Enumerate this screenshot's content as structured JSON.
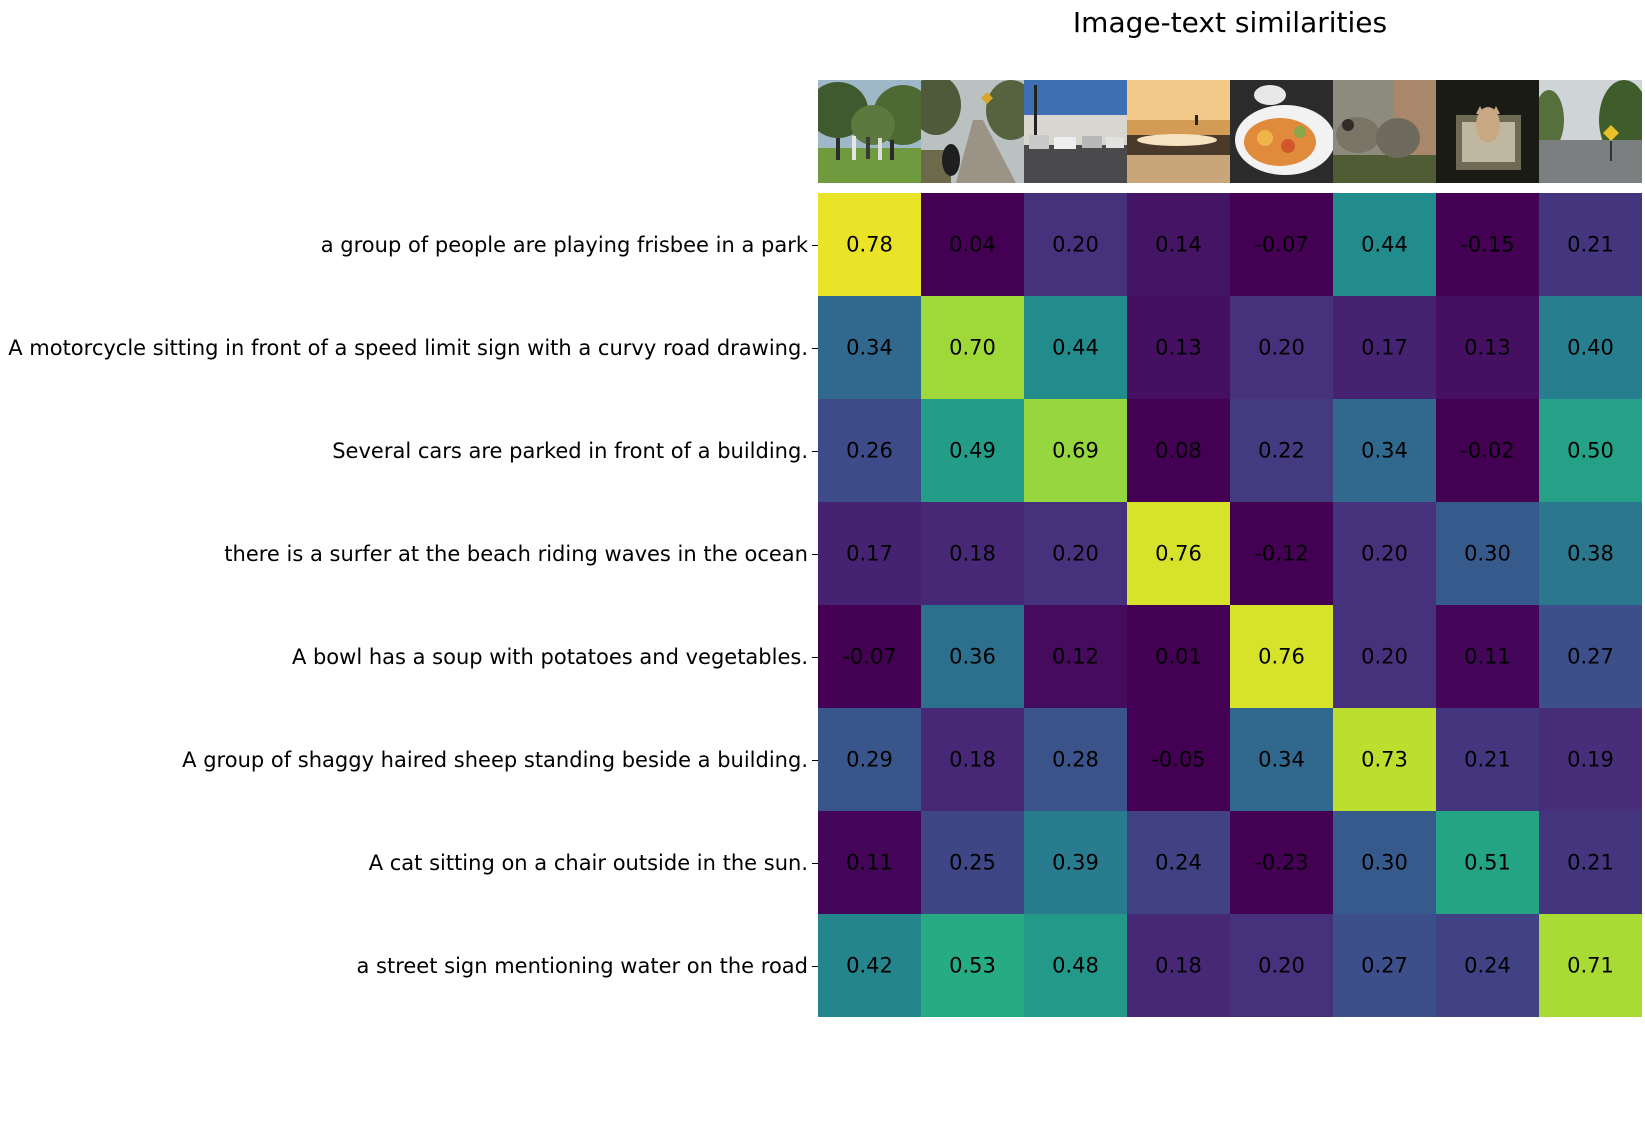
{
  "chart_data": {
    "type": "heatmap",
    "title": "Image-text similarities",
    "row_labels": [
      "a group of people are playing frisbee in a park",
      "A motorcycle sitting in front of a speed limit sign with a curvy road drawing.",
      "Several cars are parked in front of a building.",
      "there is a surfer at the beach riding waves in the ocean",
      "A bowl has a soup with potatoes and vegetables. ",
      "A group of shaggy haired sheep standing beside a building.",
      "A cat sitting on a chair outside in the sun.",
      "a street sign mentioning water on the road"
    ],
    "column_images": [
      "frisbee-park-photo",
      "motorcycle-road-photo",
      "parked-cars-photo",
      "surfer-ocean-photo",
      "soup-bowl-photo",
      "sheep-photo",
      "cat-chair-photo",
      "street-sign-photo"
    ],
    "values": [
      [
        0.78,
        0.04,
        0.2,
        0.14,
        -0.07,
        0.44,
        -0.15,
        0.21
      ],
      [
        0.34,
        0.7,
        0.44,
        0.13,
        0.2,
        0.17,
        0.13,
        0.4
      ],
      [
        0.26,
        0.49,
        0.69,
        0.08,
        0.22,
        0.34,
        -0.02,
        0.5
      ],
      [
        0.17,
        0.18,
        0.2,
        0.76,
        -0.12,
        0.2,
        0.3,
        0.38
      ],
      [
        -0.07,
        0.36,
        0.12,
        0.01,
        0.76,
        0.2,
        0.11,
        0.27
      ],
      [
        0.29,
        0.18,
        0.28,
        -0.05,
        0.34,
        0.73,
        0.21,
        0.19
      ],
      [
        0.11,
        0.25,
        0.39,
        0.24,
        -0.23,
        0.3,
        0.51,
        0.21
      ],
      [
        0.42,
        0.53,
        0.48,
        0.18,
        0.2,
        0.27,
        0.24,
        0.71
      ]
    ],
    "value_format": "2 decimals",
    "colormap": "viridis",
    "color_range": [
      0.1,
      0.8
    ],
    "grid": false,
    "legend": "none"
  }
}
